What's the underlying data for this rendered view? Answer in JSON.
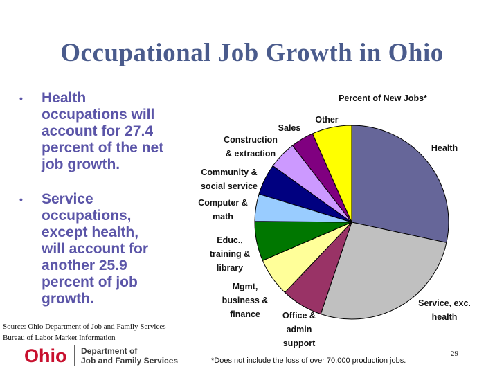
{
  "slide": {
    "title": "Occupational Job Growth in Ohio",
    "bullets": [
      {
        "bullet_char": "•",
        "lines": [
          "Health",
          "occupations will",
          "account for 27.4",
          "percent of the net",
          "job growth."
        ]
      },
      {
        "bullet_char": "•",
        "lines": [
          "Service",
          "occupations,",
          "except health,",
          "will account for",
          "another 25.9",
          "percent of job",
          "growth."
        ]
      }
    ],
    "source_lines": [
      "Source: Ohio Department of Job and Family Services",
      "Bureau of Labor Market Information"
    ],
    "logo": {
      "wordmark": "Ohio",
      "dept_line1": "Department of",
      "dept_line2": "Job and Family Services"
    },
    "footnote": "*Does not include the loss of over 70,000 production jobs.",
    "page_number": "29"
  },
  "chart_data": {
    "type": "pie",
    "title": "Percent of New Jobs*",
    "start_angle_deg": 90,
    "direction": "clockwise",
    "slices": [
      {
        "label_lines": [
          "Health"
        ],
        "value": 27.4,
        "color": "#666699"
      },
      {
        "label_lines": [
          "Service, exc.",
          "health"
        ],
        "value": 25.9,
        "color": "#c0c0c0"
      },
      {
        "label_lines": [
          "Office &",
          "admin",
          "support"
        ],
        "value": 6.7,
        "color": "#993366"
      },
      {
        "label_lines": [
          "Mgmt,",
          "business &",
          "finance"
        ],
        "value": 6.2,
        "color": "#ffff99"
      },
      {
        "label_lines": [
          "Educ.,",
          "training &",
          "library"
        ],
        "value": 6.4,
        "color": "#007700"
      },
      {
        "label_lines": [
          "Computer &",
          "math"
        ],
        "value": 4.4,
        "color": "#99ccff"
      },
      {
        "label_lines": [
          "Community &",
          "social service"
        ],
        "value": 5.0,
        "color": "#000080"
      },
      {
        "label_lines": [
          "Construction",
          "& extraction"
        ],
        "value": 4.5,
        "color": "#cc99ff"
      },
      {
        "label_lines": [
          "Sales"
        ],
        "value": 3.7,
        "color": "#800080"
      },
      {
        "label_lines": [
          "Other"
        ],
        "value": 6.4,
        "color": "#ffff00"
      }
    ]
  }
}
